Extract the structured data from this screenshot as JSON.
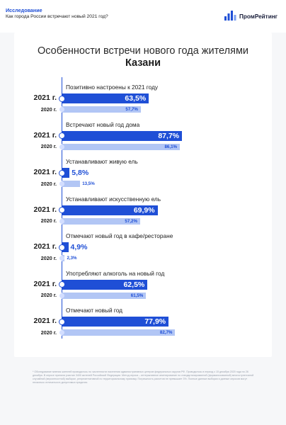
{
  "header": {
    "section": "Исследование",
    "subtitle": "Как города России встречают новый 2021 год?",
    "logo_text": "ПромРейтинг"
  },
  "title": {
    "line1": "Особенности встречи нового года жителями",
    "line2": "Казани"
  },
  "colors": {
    "bar_2021": "#1f4fd6",
    "bar_2020": "#b2c6f5",
    "accent": "#1f4fd6"
  },
  "chart_data": {
    "type": "bar",
    "orientation": "horizontal",
    "title": "Особенности встречи нового года жителями Казани",
    "series_names": [
      "2021 г.",
      "2020 г."
    ],
    "xlim": [
      0,
      100
    ],
    "groups": [
      {
        "label": "Позитивно настроены к 2021 году",
        "v2021": 63.5,
        "v2020": 57.7,
        "t2021": "63,5%",
        "t2020": "57,7%"
      },
      {
        "label": "Встречают новый год дома",
        "v2021": 87.7,
        "v2020": 86.1,
        "t2021": "87,7%",
        "t2020": "86,1%"
      },
      {
        "label": "Устанавливают живую ель",
        "v2021": 5.8,
        "v2020": 13.5,
        "t2021": "5,8%",
        "t2020": "13,5%"
      },
      {
        "label": "Устанавливают искусственную ель",
        "v2021": 69.9,
        "v2020": 57.2,
        "t2021": "69,9%",
        "t2020": "57,2%"
      },
      {
        "label": "Отмечают новый год в кафе/ресторане",
        "v2021": 4.9,
        "v2020": 2.3,
        "t2021": "4,9%",
        "t2020": "2,3%"
      },
      {
        "label": "Употребляют алкоголь на новый год",
        "v2021": 62.5,
        "v2020": 61.5,
        "t2021": "62,5%",
        "t2020": "61,5%"
      },
      {
        "label": "Отмечают новый год",
        "v2021": 77.9,
        "v2020": 82.7,
        "t2021": "77,9%",
        "t2020": "82,7%"
      }
    ]
  },
  "footnote": "* Обследование мнения жителей проводилось по численности населения административных центров федеральных округов РФ. Проводилось в период с 15 декабря 2020 года по 26 декабря. В опросе приняли участие 3400 жителей Российской Федерации. Метод опроса – интерактивное анкетирование по стандартизированной (формализованной) многоступенчатой случайной (вероятностной) выборке, репрезентативной по территориальному признаку. Погрешность расчетов не превышает 3%. Полные данные выборки и данные опросов могут несколько отличаться в допустимых пределах."
}
